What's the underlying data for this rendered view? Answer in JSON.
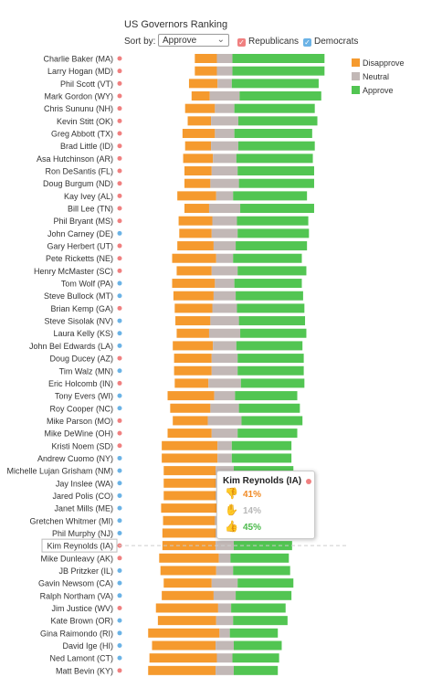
{
  "title": "US Governors Ranking",
  "controls": {
    "sort_label": "Sort by:",
    "sort_value": "Approve",
    "filter_rep": "Republicans",
    "filter_dem": "Democrats"
  },
  "colors": {
    "disapprove": "#f59a2e",
    "neutral": "#c2b8b6",
    "approve": "#52c552",
    "republican": "#f08080",
    "democrat": "#6bb3e6"
  },
  "legend": [
    "Disapprove",
    "Neutral",
    "Approve"
  ],
  "tooltip": {
    "name": "Kim Reynolds (IA)",
    "party": "R",
    "disapprove": "41%",
    "neutral": "14%",
    "approve": "45%"
  },
  "chart_data": {
    "type": "bar",
    "stacked": "diverging",
    "series_names": [
      "Disapprove",
      "Neutral",
      "Approve"
    ],
    "rows": [
      {
        "name": "Charlie Baker (MA)",
        "party": "R",
        "disapprove": 17,
        "neutral": 12,
        "approve": 71
      },
      {
        "name": "Larry Hogan (MD)",
        "party": "R",
        "disapprove": 17,
        "neutral": 12,
        "approve": 71
      },
      {
        "name": "Phil Scott (VT)",
        "party": "R",
        "disapprove": 22,
        "neutral": 11,
        "approve": 67
      },
      {
        "name": "Mark Gordon (WY)",
        "party": "R",
        "disapprove": 14,
        "neutral": 23,
        "approve": 63
      },
      {
        "name": "Chris Sununu (NH)",
        "party": "R",
        "disapprove": 23,
        "neutral": 15,
        "approve": 62
      },
      {
        "name": "Kevin Stitt (OK)",
        "party": "R",
        "disapprove": 18,
        "neutral": 21,
        "approve": 61
      },
      {
        "name": "Greg Abbott (TX)",
        "party": "R",
        "disapprove": 25,
        "neutral": 15,
        "approve": 60
      },
      {
        "name": "Brad Little (ID)",
        "party": "R",
        "disapprove": 20,
        "neutral": 21,
        "approve": 59
      },
      {
        "name": "Asa Hutchinson (AR)",
        "party": "R",
        "disapprove": 23,
        "neutral": 18,
        "approve": 59
      },
      {
        "name": "Ron DeSantis (FL)",
        "party": "R",
        "disapprove": 21,
        "neutral": 20,
        "approve": 59
      },
      {
        "name": "Doug Burgum (ND)",
        "party": "R",
        "disapprove": 20,
        "neutral": 22,
        "approve": 58
      },
      {
        "name": "Kay Ivey (AL)",
        "party": "R",
        "disapprove": 30,
        "neutral": 13,
        "approve": 57
      },
      {
        "name": "Bill Lee (TN)",
        "party": "R",
        "disapprove": 19,
        "neutral": 24,
        "approve": 57
      },
      {
        "name": "Phil Bryant (MS)",
        "party": "R",
        "disapprove": 26,
        "neutral": 19,
        "approve": 55
      },
      {
        "name": "John Carney (DE)",
        "party": "D",
        "disapprove": 25,
        "neutral": 20,
        "approve": 55
      },
      {
        "name": "Gary Herbert (UT)",
        "party": "R",
        "disapprove": 28,
        "neutral": 17,
        "approve": 55
      },
      {
        "name": "Pete Ricketts (NE)",
        "party": "R",
        "disapprove": 34,
        "neutral": 13,
        "approve": 53
      },
      {
        "name": "Henry McMaster (SC)",
        "party": "R",
        "disapprove": 27,
        "neutral": 20,
        "approve": 53
      },
      {
        "name": "Tom Wolf (PA)",
        "party": "D",
        "disapprove": 33,
        "neutral": 15,
        "approve": 52
      },
      {
        "name": "Steve Bullock (MT)",
        "party": "D",
        "disapprove": 31,
        "neutral": 17,
        "approve": 52
      },
      {
        "name": "Brian Kemp (GA)",
        "party": "R",
        "disapprove": 29,
        "neutral": 19,
        "approve": 52
      },
      {
        "name": "Steve Sisolak (NV)",
        "party": "D",
        "disapprove": 27,
        "neutral": 22,
        "approve": 51
      },
      {
        "name": "Laura Kelly (KS)",
        "party": "D",
        "disapprove": 25,
        "neutral": 24,
        "approve": 51
      },
      {
        "name": "John Bel Edwards (LA)",
        "party": "D",
        "disapprove": 31,
        "neutral": 18,
        "approve": 51
      },
      {
        "name": "Doug Ducey (AZ)",
        "party": "R",
        "disapprove": 29,
        "neutral": 20,
        "approve": 51
      },
      {
        "name": "Tim Walz (MN)",
        "party": "D",
        "disapprove": 29,
        "neutral": 20,
        "approve": 51
      },
      {
        "name": "Eric Holcomb (IN)",
        "party": "R",
        "disapprove": 26,
        "neutral": 25,
        "approve": 49
      },
      {
        "name": "Tony Evers (WI)",
        "party": "D",
        "disapprove": 36,
        "neutral": 16,
        "approve": 48
      },
      {
        "name": "Roy Cooper (NC)",
        "party": "D",
        "disapprove": 31,
        "neutral": 22,
        "approve": 47
      },
      {
        "name": "Mike Parson (MO)",
        "party": "R",
        "disapprove": 27,
        "neutral": 26,
        "approve": 47
      },
      {
        "name": "Mike DeWine (OH)",
        "party": "R",
        "disapprove": 34,
        "neutral": 20,
        "approve": 46
      },
      {
        "name": "Kristi Noem (SD)",
        "party": "R",
        "disapprove": 43,
        "neutral": 11,
        "approve": 46
      },
      {
        "name": "Andrew Cuomo (NY)",
        "party": "D",
        "disapprove": 43,
        "neutral": 11,
        "approve": 46
      },
      {
        "name": "Michelle Lujan Grisham (NM)",
        "party": "D",
        "disapprove": 40,
        "neutral": 14,
        "approve": 46
      },
      {
        "name": "Jay Inslee (WA)",
        "party": "D",
        "disapprove": 40,
        "neutral": 14,
        "approve": 46
      },
      {
        "name": "Jared Polis (CO)",
        "party": "D",
        "disapprove": 40,
        "neutral": 14,
        "approve": 46
      },
      {
        "name": "Janet Mills (ME)",
        "party": "D",
        "disapprove": 43,
        "neutral": 12,
        "approve": 45
      },
      {
        "name": "Gretchen Whitmer (MI)",
        "party": "D",
        "disapprove": 40,
        "neutral": 15,
        "approve": 45
      },
      {
        "name": "Phil Murphy (NJ)",
        "party": "D",
        "disapprove": 41,
        "neutral": 14,
        "approve": 45
      },
      {
        "name": "Kim Reynolds (IA)",
        "party": "R",
        "disapprove": 41,
        "neutral": 14,
        "approve": 45
      },
      {
        "name": "Mike Dunleavy (AK)",
        "party": "R",
        "disapprove": 46,
        "neutral": 9,
        "approve": 45
      },
      {
        "name": "JB Pritzker (IL)",
        "party": "D",
        "disapprove": 43,
        "neutral": 13,
        "approve": 44
      },
      {
        "name": "Gavin Newsom (CA)",
        "party": "D",
        "disapprove": 37,
        "neutral": 20,
        "approve": 43
      },
      {
        "name": "Ralph Northam (VA)",
        "party": "D",
        "disapprove": 40,
        "neutral": 17,
        "approve": 43
      },
      {
        "name": "Jim Justice (WV)",
        "party": "R",
        "disapprove": 48,
        "neutral": 10,
        "approve": 42
      },
      {
        "name": "Kate Brown (OR)",
        "party": "D",
        "disapprove": 45,
        "neutral": 13,
        "approve": 42
      },
      {
        "name": "Gina Raimondo (RI)",
        "party": "D",
        "disapprove": 55,
        "neutral": 8,
        "approve": 37
      },
      {
        "name": "David Ige (HI)",
        "party": "D",
        "disapprove": 49,
        "neutral": 14,
        "approve": 37
      },
      {
        "name": "Ned Lamont (CT)",
        "party": "D",
        "disapprove": 52,
        "neutral": 12,
        "approve": 36
      },
      {
        "name": "Matt Bevin (KY)",
        "party": "R",
        "disapprove": 52,
        "neutral": 14,
        "approve": 34
      }
    ]
  }
}
